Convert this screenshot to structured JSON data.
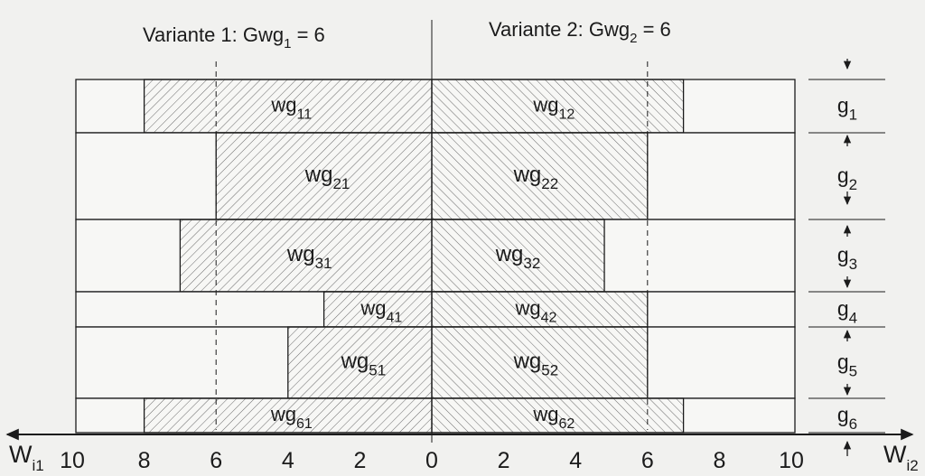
{
  "header": {
    "variant1": {
      "prefix": "Variante 1: Gwg",
      "sub": "1",
      "suffix": " = 6"
    },
    "variant2": {
      "prefix": "Variante 2: Gwg",
      "sub": "2",
      "suffix": " = 6"
    }
  },
  "threshold_left": 6,
  "threshold_right": 6,
  "axis": {
    "left_label": {
      "main": "W",
      "sub": "i1"
    },
    "right_label": {
      "main": "W",
      "sub": "i2"
    },
    "min": 0,
    "max": 10,
    "ticks_left": [
      "10",
      "8",
      "6",
      "4",
      "2"
    ],
    "ticks_center": "0",
    "ticks_right": [
      "2",
      "4",
      "6",
      "8",
      "10"
    ]
  },
  "rows": [
    {
      "g": {
        "main": "g",
        "sub": "1"
      },
      "left": 8,
      "right": 7,
      "left_label": {
        "main": "wg",
        "sub": "11"
      },
      "right_label": {
        "main": "wg",
        "sub": "12"
      }
    },
    {
      "g": {
        "main": "g",
        "sub": "2"
      },
      "left": 6,
      "right": 6,
      "left_label": {
        "main": "wg",
        "sub": "21"
      },
      "right_label": {
        "main": "wg",
        "sub": "22"
      }
    },
    {
      "g": {
        "main": "g",
        "sub": "3"
      },
      "left": 7,
      "right": 4.8,
      "left_label": {
        "main": "wg",
        "sub": "31"
      },
      "right_label": {
        "main": "wg",
        "sub": "32"
      }
    },
    {
      "g": {
        "main": "g",
        "sub": "4"
      },
      "left": 3,
      "right": 6,
      "left_label": {
        "main": "wg",
        "sub": "41"
      },
      "right_label": {
        "main": "wg",
        "sub": "42"
      }
    },
    {
      "g": {
        "main": "g",
        "sub": "5"
      },
      "left": 4,
      "right": 6,
      "left_label": {
        "main": "wg",
        "sub": "51"
      },
      "right_label": {
        "main": "wg",
        "sub": "52"
      }
    },
    {
      "g": {
        "main": "g",
        "sub": "6"
      },
      "left": 8,
      "right": 7,
      "left_label": {
        "main": "wg",
        "sub": "61"
      },
      "right_label": {
        "main": "wg",
        "sub": "62"
      }
    }
  ]
}
